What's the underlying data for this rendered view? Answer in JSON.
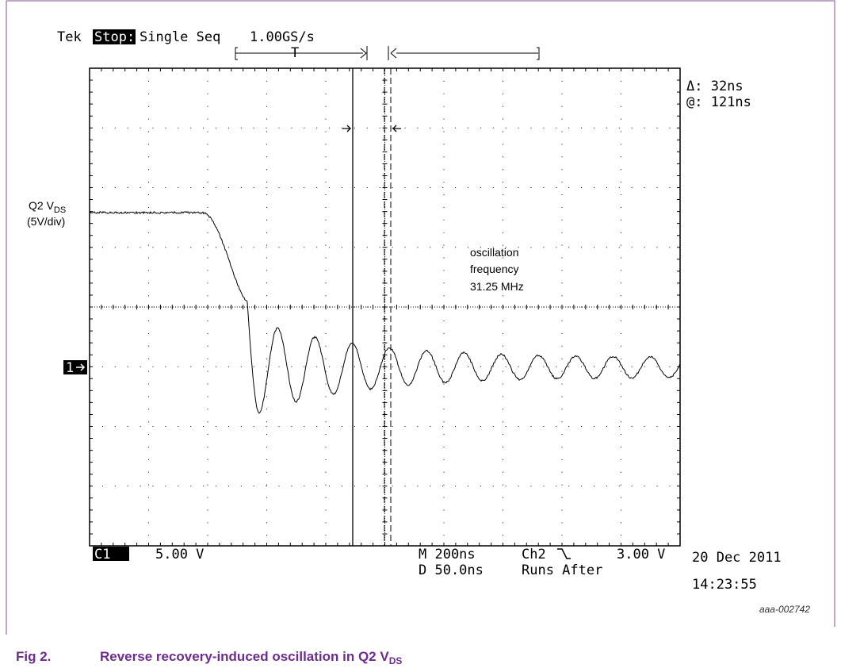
{
  "header": {
    "brand": "Tek",
    "state": "Stop:",
    "mode": "Single Seq",
    "rate": "1.00GS/s",
    "trigger_mark": "T"
  },
  "cursor": {
    "delta": "Δ: 32ns",
    "at": "@: 121ns"
  },
  "channel_label": {
    "name": "Q2 V",
    "sub": "DS",
    "scale": "(5V/div)"
  },
  "annotation": [
    "oscillation",
    "frequency",
    "31.25 MHz"
  ],
  "marker": "1",
  "readout": {
    "channel": "C1",
    "volts": "5.00 V",
    "main": "M 200ns",
    "trig_channel": "Ch2",
    "trig_level": "3.00 V",
    "delay": "D 50.0ns",
    "runs": "Runs After"
  },
  "timestamp": {
    "date": "20 Dec 2011",
    "time": "14:23:55"
  },
  "code": "aaa-002742",
  "caption": {
    "number": "Fig 2.",
    "title": "Reverse recovery-induced oscillation in Q2 V",
    "sub": "DS"
  }
}
